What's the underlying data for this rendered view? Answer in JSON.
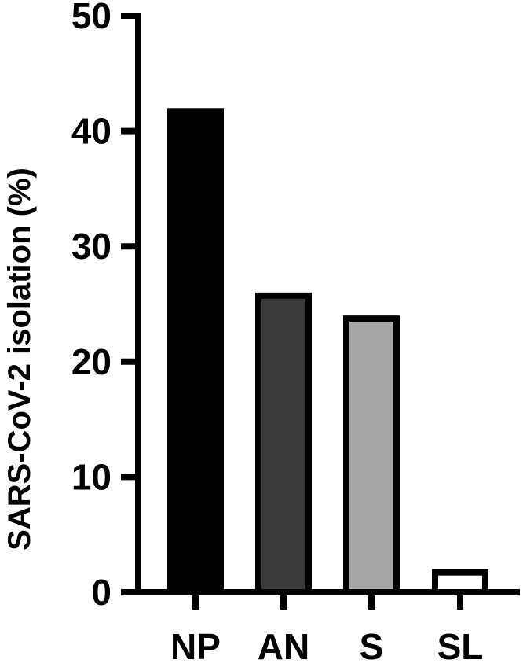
{
  "chart_data": {
    "type": "bar",
    "title": "",
    "xlabel": "",
    "ylabel": "SARS-CoV-2 isolation (%)",
    "categories": [
      "NP",
      "AN",
      "S",
      "SL"
    ],
    "values": [
      42,
      26,
      24,
      2
    ],
    "ylim": [
      0,
      50
    ],
    "yticks": [
      0,
      10,
      20,
      30,
      40,
      50
    ],
    "grid": false,
    "bar_colors": [
      "#000000",
      "#3a3a3a",
      "#a6a6a6",
      "#ffffff"
    ],
    "bar_edge_color": "#000000"
  }
}
